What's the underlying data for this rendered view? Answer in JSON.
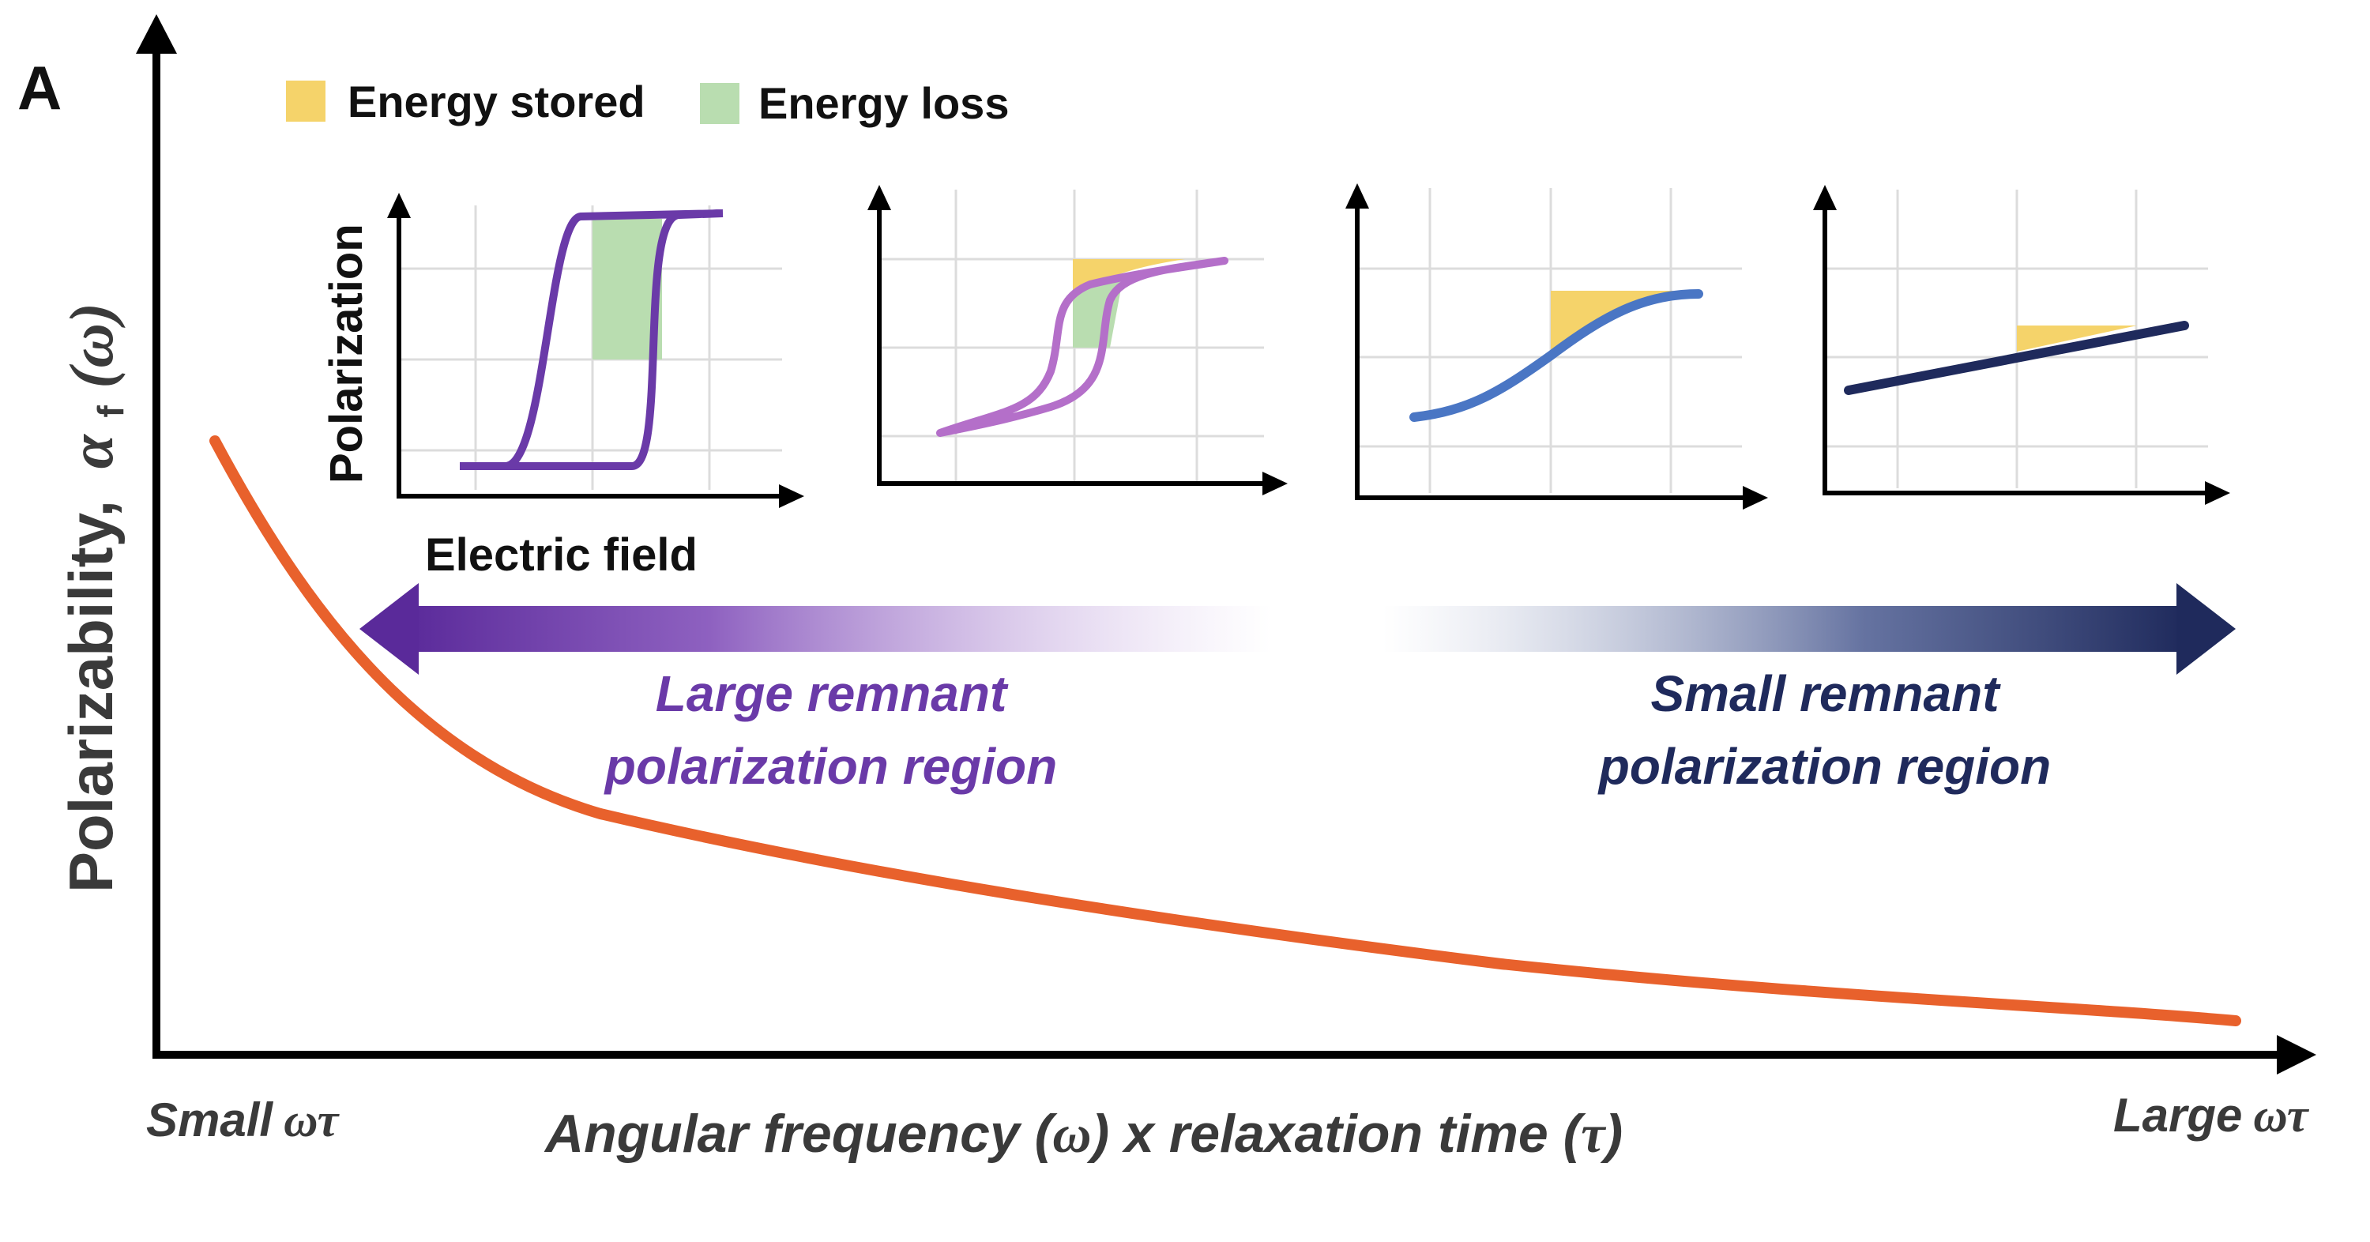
{
  "panel_label": "A",
  "legend": {
    "stored_label": "Energy stored",
    "loss_label": "Energy loss",
    "stored_color": "#f5d36a",
    "loss_color": "#b9ddb0"
  },
  "axes": {
    "y_label_main": "Polarizability,",
    "y_label_symbol": "α",
    "y_label_sub": "f",
    "y_label_arg": "(ω)",
    "x_label_pre": "Angular frequency (",
    "x_label_omega": "ω",
    "x_label_mid": ") x relaxation time (",
    "x_label_tau": "τ",
    "x_label_post": ")",
    "x_left_word": "Small",
    "x_left_sym": "ωτ",
    "x_right_word": "Large",
    "x_right_sym": "ωτ"
  },
  "insets": {
    "y_label": "Polarization",
    "x_label": "Electric field",
    "loop_colors": [
      "#6a3aa8",
      "#b46fc9",
      "#4a76c4",
      "#1f2a5c"
    ]
  },
  "regions": {
    "left_line1": "Large remnant",
    "left_line2": "polarization region",
    "right_line1": "Small remnant",
    "right_line2": "polarization region",
    "left_color": "#6a3aa8",
    "right_color": "#1f2a5c"
  },
  "curve_color": "#e8612c"
}
